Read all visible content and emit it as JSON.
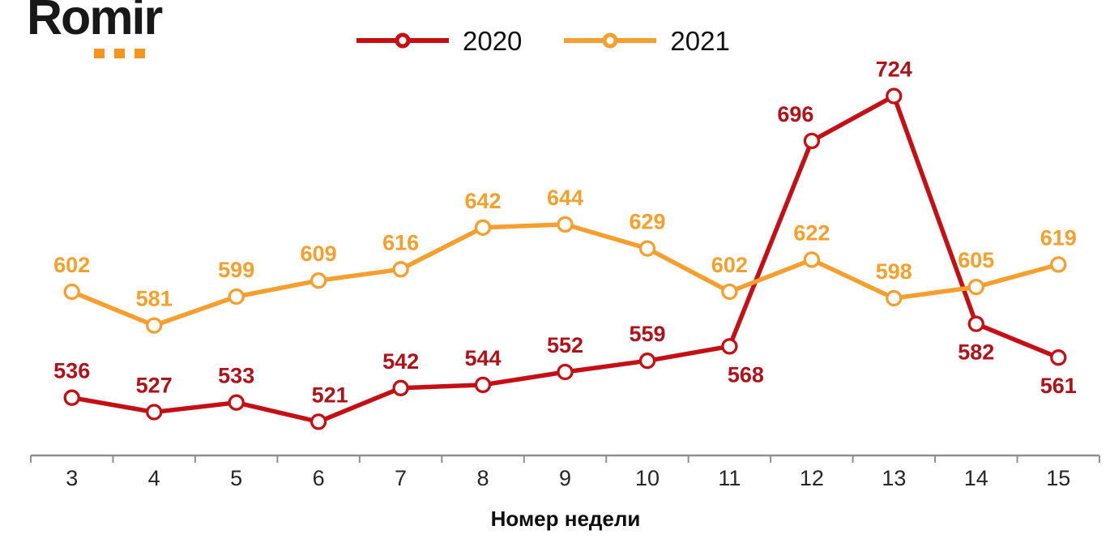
{
  "logo": {
    "text": "Romir",
    "dot_color": "#F7941E",
    "dot_count": 3
  },
  "legend": {
    "items": [
      {
        "label": "2020"
      },
      {
        "label": "2021"
      }
    ]
  },
  "chart_data": {
    "type": "line",
    "title": "",
    "xlabel": "Номер недели",
    "ylabel": "",
    "categories": [
      3,
      4,
      5,
      6,
      7,
      8,
      9,
      10,
      11,
      12,
      13,
      14,
      15
    ],
    "series": [
      {
        "name": "2020",
        "color": "#C50F14",
        "label_color": "#B1121A",
        "values": [
          536,
          527,
          533,
          521,
          542,
          544,
          552,
          559,
          568,
          696,
          724,
          582,
          561
        ],
        "label_pos": [
          "above",
          "above",
          "above",
          "above",
          "above",
          "above",
          "above",
          "above",
          "below",
          "above",
          "above",
          "below",
          "below"
        ],
        "label_dx": [
          0,
          0,
          0,
          14,
          0,
          0,
          0,
          0,
          20,
          -20,
          0,
          0,
          0
        ]
      },
      {
        "name": "2021",
        "color": "#F79F2E",
        "label_color": "#F5A02C",
        "values": [
          602,
          581,
          599,
          609,
          616,
          642,
          644,
          629,
          602,
          622,
          598,
          605,
          619
        ],
        "label_pos": [
          "above",
          "above",
          "above",
          "above",
          "above",
          "above",
          "above",
          "above",
          "above",
          "above",
          "above",
          "above",
          "above"
        ],
        "label_dx": [
          0,
          0,
          0,
          0,
          0,
          0,
          0,
          0,
          0,
          0,
          0,
          0,
          0
        ]
      }
    ],
    "ylim": [
      500,
      750
    ],
    "grid": false,
    "legend_position": "top-center",
    "marker_style": "open-circle-white-fill",
    "axis_color": "#8F8F8F",
    "tick_label_color": "#262626"
  }
}
